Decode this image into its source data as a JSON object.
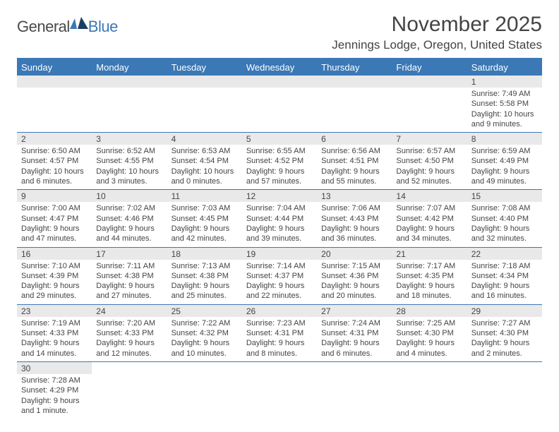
{
  "logo": {
    "dark": "General",
    "blue": "Blue"
  },
  "title": "November 2025",
  "location": "Jennings Lodge, Oregon, United States",
  "colors": {
    "header_bg": "#3b78b6",
    "daynum_bg": "#e9e9e9",
    "text": "#444444",
    "page_bg": "#ffffff"
  },
  "day_names": [
    "Sunday",
    "Monday",
    "Tuesday",
    "Wednesday",
    "Thursday",
    "Friday",
    "Saturday"
  ],
  "weeks": [
    [
      null,
      null,
      null,
      null,
      null,
      null,
      {
        "n": "1",
        "sr": "7:49 AM",
        "ss": "5:58 PM",
        "dl": "10 hours and 9 minutes."
      }
    ],
    [
      {
        "n": "2",
        "sr": "6:50 AM",
        "ss": "4:57 PM",
        "dl": "10 hours and 6 minutes."
      },
      {
        "n": "3",
        "sr": "6:52 AM",
        "ss": "4:55 PM",
        "dl": "10 hours and 3 minutes."
      },
      {
        "n": "4",
        "sr": "6:53 AM",
        "ss": "4:54 PM",
        "dl": "10 hours and 0 minutes."
      },
      {
        "n": "5",
        "sr": "6:55 AM",
        "ss": "4:52 PM",
        "dl": "9 hours and 57 minutes."
      },
      {
        "n": "6",
        "sr": "6:56 AM",
        "ss": "4:51 PM",
        "dl": "9 hours and 55 minutes."
      },
      {
        "n": "7",
        "sr": "6:57 AM",
        "ss": "4:50 PM",
        "dl": "9 hours and 52 minutes."
      },
      {
        "n": "8",
        "sr": "6:59 AM",
        "ss": "4:49 PM",
        "dl": "9 hours and 49 minutes."
      }
    ],
    [
      {
        "n": "9",
        "sr": "7:00 AM",
        "ss": "4:47 PM",
        "dl": "9 hours and 47 minutes."
      },
      {
        "n": "10",
        "sr": "7:02 AM",
        "ss": "4:46 PM",
        "dl": "9 hours and 44 minutes."
      },
      {
        "n": "11",
        "sr": "7:03 AM",
        "ss": "4:45 PM",
        "dl": "9 hours and 42 minutes."
      },
      {
        "n": "12",
        "sr": "7:04 AM",
        "ss": "4:44 PM",
        "dl": "9 hours and 39 minutes."
      },
      {
        "n": "13",
        "sr": "7:06 AM",
        "ss": "4:43 PM",
        "dl": "9 hours and 36 minutes."
      },
      {
        "n": "14",
        "sr": "7:07 AM",
        "ss": "4:42 PM",
        "dl": "9 hours and 34 minutes."
      },
      {
        "n": "15",
        "sr": "7:08 AM",
        "ss": "4:40 PM",
        "dl": "9 hours and 32 minutes."
      }
    ],
    [
      {
        "n": "16",
        "sr": "7:10 AM",
        "ss": "4:39 PM",
        "dl": "9 hours and 29 minutes."
      },
      {
        "n": "17",
        "sr": "7:11 AM",
        "ss": "4:38 PM",
        "dl": "9 hours and 27 minutes."
      },
      {
        "n": "18",
        "sr": "7:13 AM",
        "ss": "4:38 PM",
        "dl": "9 hours and 25 minutes."
      },
      {
        "n": "19",
        "sr": "7:14 AM",
        "ss": "4:37 PM",
        "dl": "9 hours and 22 minutes."
      },
      {
        "n": "20",
        "sr": "7:15 AM",
        "ss": "4:36 PM",
        "dl": "9 hours and 20 minutes."
      },
      {
        "n": "21",
        "sr": "7:17 AM",
        "ss": "4:35 PM",
        "dl": "9 hours and 18 minutes."
      },
      {
        "n": "22",
        "sr": "7:18 AM",
        "ss": "4:34 PM",
        "dl": "9 hours and 16 minutes."
      }
    ],
    [
      {
        "n": "23",
        "sr": "7:19 AM",
        "ss": "4:33 PM",
        "dl": "9 hours and 14 minutes."
      },
      {
        "n": "24",
        "sr": "7:20 AM",
        "ss": "4:33 PM",
        "dl": "9 hours and 12 minutes."
      },
      {
        "n": "25",
        "sr": "7:22 AM",
        "ss": "4:32 PM",
        "dl": "9 hours and 10 minutes."
      },
      {
        "n": "26",
        "sr": "7:23 AM",
        "ss": "4:31 PM",
        "dl": "9 hours and 8 minutes."
      },
      {
        "n": "27",
        "sr": "7:24 AM",
        "ss": "4:31 PM",
        "dl": "9 hours and 6 minutes."
      },
      {
        "n": "28",
        "sr": "7:25 AM",
        "ss": "4:30 PM",
        "dl": "9 hours and 4 minutes."
      },
      {
        "n": "29",
        "sr": "7:27 AM",
        "ss": "4:30 PM",
        "dl": "9 hours and 2 minutes."
      }
    ],
    [
      {
        "n": "30",
        "sr": "7:28 AM",
        "ss": "4:29 PM",
        "dl": "9 hours and 1 minute."
      },
      null,
      null,
      null,
      null,
      null,
      null
    ]
  ],
  "labels": {
    "sunrise": "Sunrise:",
    "sunset": "Sunset:",
    "daylight": "Daylight:"
  }
}
